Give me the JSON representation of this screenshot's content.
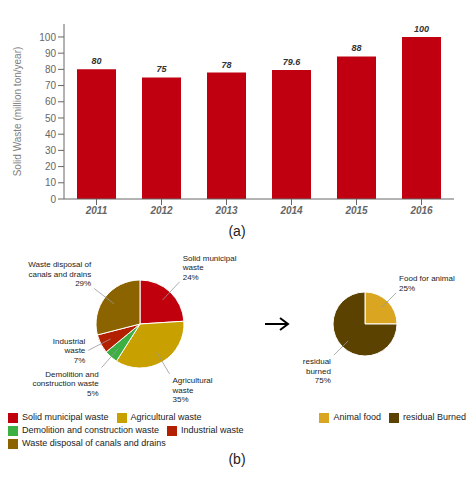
{
  "chart_data": [
    {
      "type": "bar",
      "title": "(a)",
      "categories": [
        "2011",
        "2012",
        "2013",
        "2014",
        "2015",
        "2016"
      ],
      "values": [
        80,
        75,
        78,
        79.6,
        88,
        100
      ],
      "color": "#C00010",
      "ylabel": "Solid Waste (million ton/year)",
      "ylim": [
        0,
        108
      ],
      "yticks": [
        0,
        10,
        20,
        30,
        40,
        50,
        60,
        70,
        80,
        90,
        100
      ],
      "data_labels": true,
      "grid": false
    },
    {
      "type": "pie",
      "title": "(b)",
      "categories": [
        "Solid municipal waste",
        "Agricultural waste",
        "Demolition and construction waste",
        "Industrial waste",
        "Waste disposal of canals and drains"
      ],
      "values": [
        24,
        35,
        5,
        7,
        29
      ],
      "colors": [
        "#C0000C",
        "#C8A000",
        "#3CB043",
        "#B22000",
        "#8B6400"
      ],
      "annotations": [
        "Solid municipal\nwaste\n24%",
        "Agricultural\nwaste\n35%",
        "Demolition and\nconstruction waste\n5%",
        "Industrial\nwaste\n7%",
        "Waste disposal of\ncanals and drains\n29%"
      ],
      "legend": "bottom"
    },
    {
      "type": "pie",
      "categories": [
        "Animal food",
        "residual Burned"
      ],
      "values": [
        25,
        75
      ],
      "colors": [
        "#DAA520",
        "#5C4200"
      ],
      "annotations": [
        "Food for animal\n25%",
        "residual\nburned\n75%"
      ],
      "legend": "bottom"
    }
  ]
}
